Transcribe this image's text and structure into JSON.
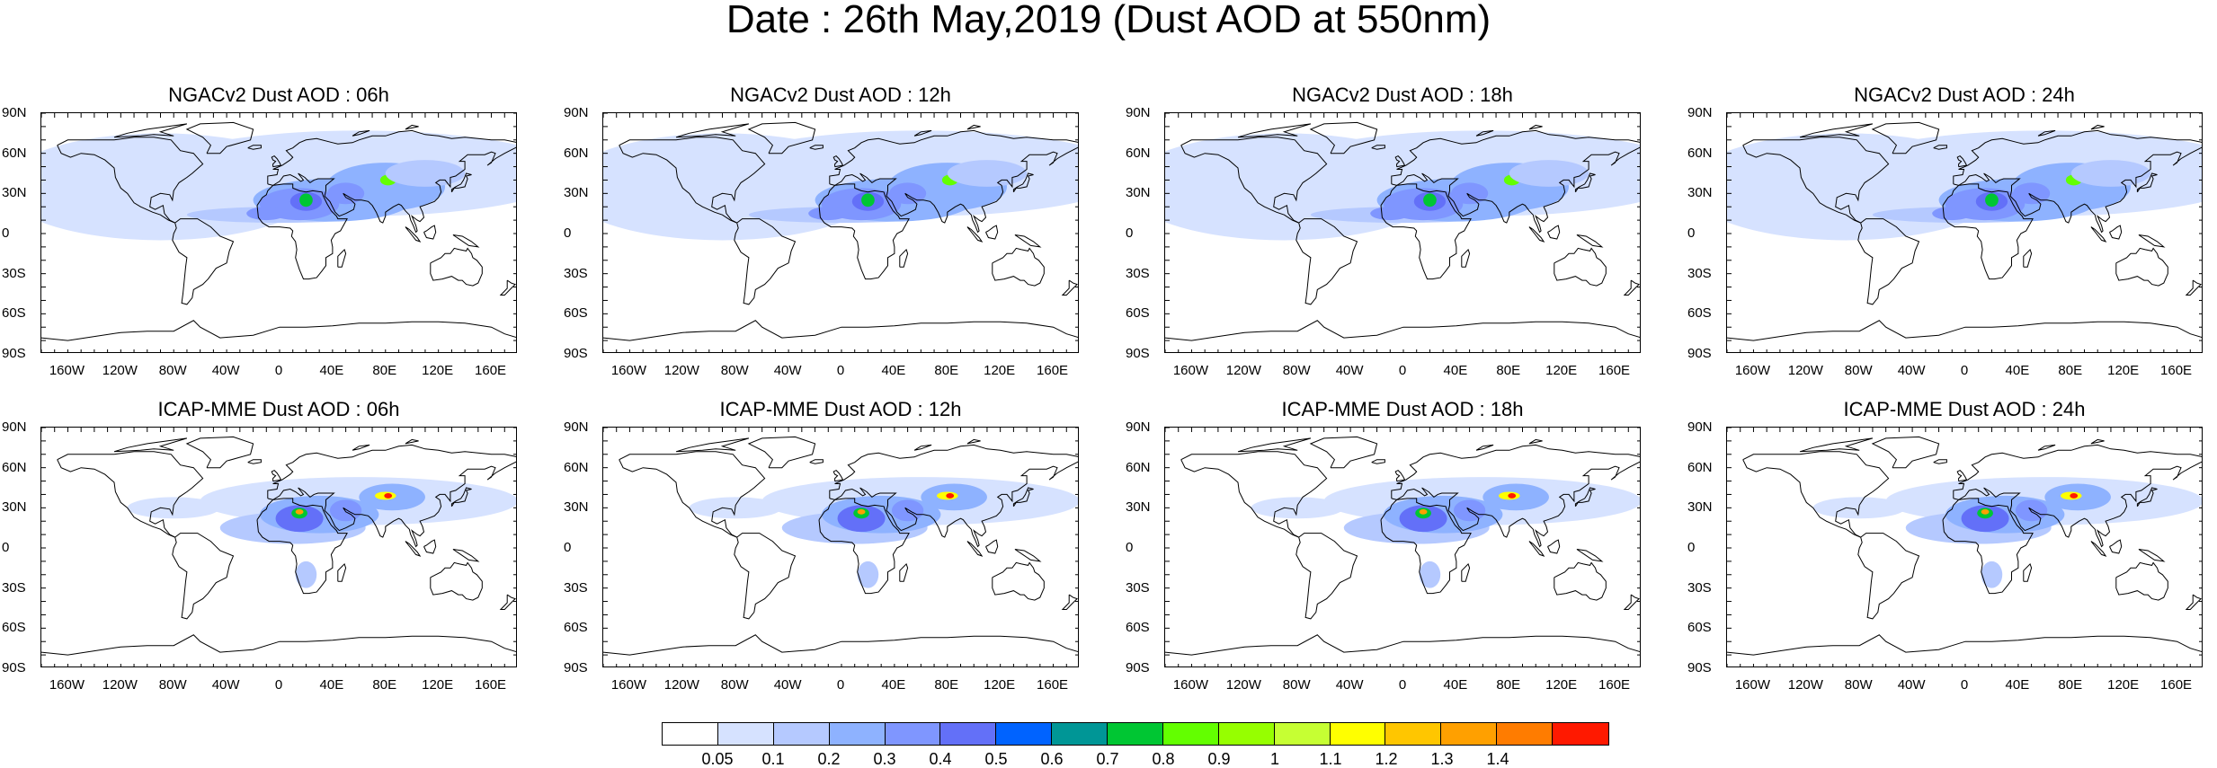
{
  "title": "Date : 26th May,2019 (Dust AOD at 550nm)",
  "lat_labels": [
    "90N",
    "60N",
    "30N",
    "0",
    "30S",
    "60S",
    "90S"
  ],
  "lon_labels": [
    "160W",
    "120W",
    "80W",
    "40W",
    "0",
    "40E",
    "80E",
    "120E",
    "160E"
  ],
  "panels": [
    {
      "title": "NGACv2 Dust AOD : 06h",
      "model": "NGACv2",
      "forecast_hour": "06h"
    },
    {
      "title": "NGACv2 Dust AOD : 12h",
      "model": "NGACv2",
      "forecast_hour": "12h"
    },
    {
      "title": "NGACv2 Dust AOD : 18h",
      "model": "NGACv2",
      "forecast_hour": "18h"
    },
    {
      "title": "NGACv2 Dust AOD : 24h",
      "model": "NGACv2",
      "forecast_hour": "24h"
    },
    {
      "title": "ICAP-MME Dust AOD : 06h",
      "model": "ICAP-MME",
      "forecast_hour": "06h"
    },
    {
      "title": "ICAP-MME Dust AOD : 12h",
      "model": "ICAP-MME",
      "forecast_hour": "12h"
    },
    {
      "title": "ICAP-MME Dust AOD : 18h",
      "model": "ICAP-MME",
      "forecast_hour": "18h"
    },
    {
      "title": "ICAP-MME Dust AOD : 24h",
      "model": "ICAP-MME",
      "forecast_hour": "24h"
    }
  ],
  "colorbar": {
    "labels": [
      "0.05",
      "0.1",
      "0.2",
      "0.3",
      "0.4",
      "0.5",
      "0.6",
      "0.7",
      "0.8",
      "0.9",
      "1",
      "1.1",
      "1.2",
      "1.3",
      "1.4"
    ],
    "colors": [
      "#ffffff",
      "#d6e2ff",
      "#b5c9ff",
      "#8eb2ff",
      "#7f96ff",
      "#6370f8",
      "#0063ff",
      "#009696",
      "#00c633",
      "#63ff00",
      "#96ff00",
      "#c6ff33",
      "#ffff00",
      "#ffc600",
      "#ffa000",
      "#ff7c00",
      "#ff1900"
    ]
  },
  "colors": {
    "background": "#ffffff",
    "coastline": "#000000"
  }
}
